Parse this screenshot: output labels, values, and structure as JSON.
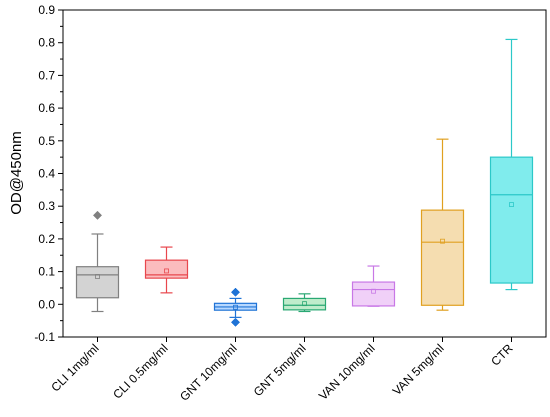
{
  "chart_data": {
    "type": "box",
    "title": "",
    "xlabel": "",
    "ylabel": "OD@450nm",
    "ylim": [
      -0.1,
      0.9
    ],
    "yticks": [
      "-0.1",
      "0.0",
      "0.1",
      "0.2",
      "0.3",
      "0.4",
      "0.5",
      "0.6",
      "0.7",
      "0.8",
      "0.9"
    ],
    "grid": false,
    "legend": "none",
    "series": [
      {
        "category": "CLI 1mg/ml",
        "color": "#808080",
        "fill": "#d3d3d3",
        "whisker_low": -0.022,
        "q1": 0.02,
        "median": 0.09,
        "q3": 0.115,
        "whisker_high": 0.215,
        "mean": 0.085,
        "outliers": [
          0.272
        ]
      },
      {
        "category": "CLI 0.5mg/ml",
        "color": "#e8474d",
        "fill": "#fbbcbe",
        "whisker_low": 0.035,
        "q1": 0.08,
        "median": 0.09,
        "q3": 0.135,
        "whisker_high": 0.175,
        "mean": 0.102,
        "outliers": []
      },
      {
        "category": "GNT 10mg/ml",
        "color": "#1f73d6",
        "fill": "#b7d8ff",
        "whisker_low": -0.04,
        "q1": -0.018,
        "median": -0.008,
        "q3": 0.003,
        "whisker_high": 0.018,
        "mean": -0.009,
        "outliers": [
          -0.055,
          0.037
        ]
      },
      {
        "category": "GNT 5mg/ml",
        "color": "#2aa873",
        "fill": "#bfeccb",
        "whisker_low": -0.022,
        "q1": -0.017,
        "median": -0.003,
        "q3": 0.018,
        "whisker_high": 0.032,
        "mean": 0.002,
        "outliers": []
      },
      {
        "category": "VAN 10mg/ml",
        "color": "#c878e6",
        "fill": "#f0d0f8",
        "whisker_low": -0.006,
        "q1": -0.005,
        "median": 0.045,
        "q3": 0.068,
        "whisker_high": 0.117,
        "mean": 0.04,
        "outliers": []
      },
      {
        "category": "VAN 5mg/ml",
        "color": "#e0a020",
        "fill": "#f5ddb0",
        "whisker_low": -0.018,
        "q1": -0.003,
        "median": 0.19,
        "q3": 0.288,
        "whisker_high": 0.505,
        "mean": 0.193,
        "outliers": []
      },
      {
        "category": "CTR",
        "color": "#2cc8c8",
        "fill": "#80eced",
        "whisker_low": 0.045,
        "q1": 0.065,
        "median": 0.335,
        "q3": 0.45,
        "whisker_high": 0.81,
        "mean": 0.305,
        "outliers": []
      }
    ]
  }
}
